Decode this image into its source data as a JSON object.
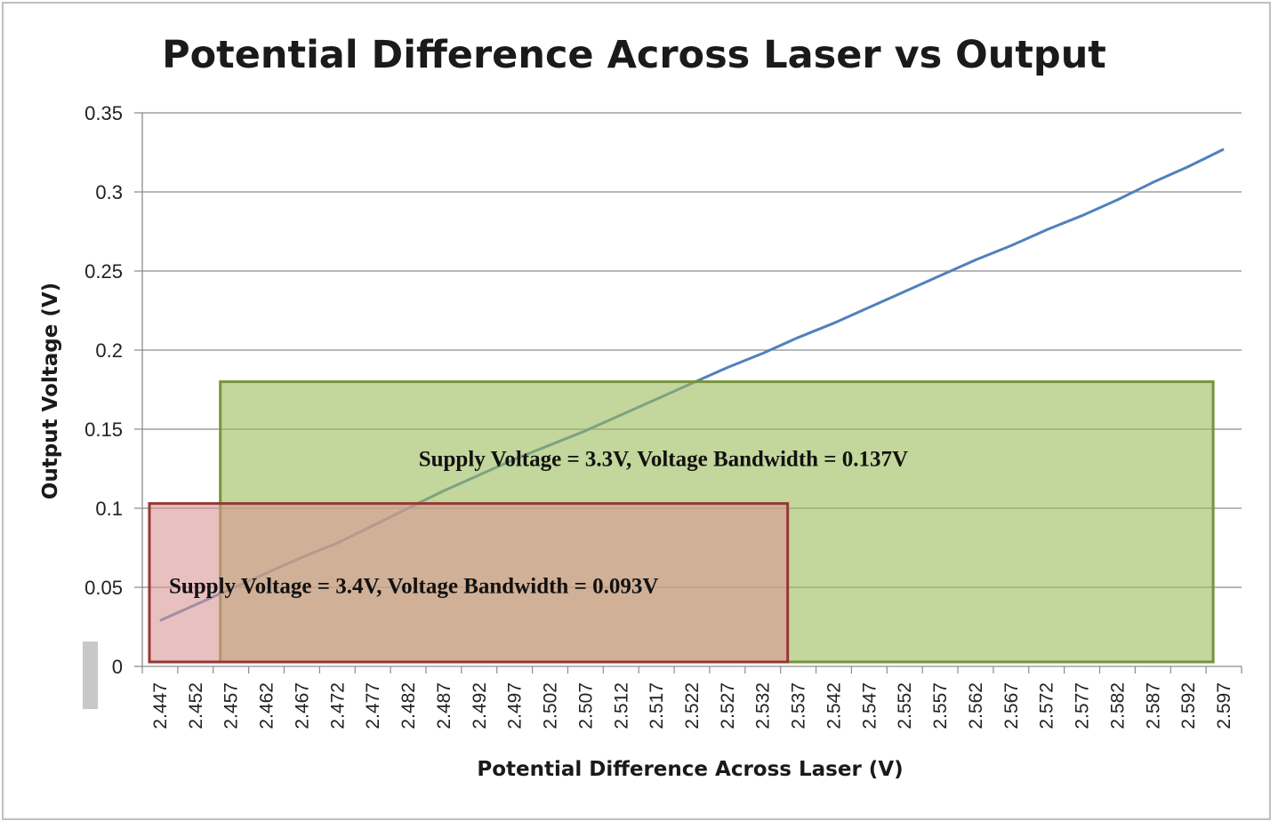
{
  "chart_data": {
    "type": "line",
    "title": "Potential Difference Across Laser vs Output",
    "xlabel": "Potential Difference Across Laser (V)",
    "ylabel": "Output Voltage (V)",
    "ylim": [
      0,
      0.35
    ],
    "yticks": [
      "0",
      "0.05",
      "0.1",
      "0.15",
      "0.2",
      "0.25",
      "0.3",
      "0.35"
    ],
    "categories": [
      "2.447",
      "2.452",
      "2.457",
      "2.462",
      "2.467",
      "2.472",
      "2.477",
      "2.482",
      "2.487",
      "2.492",
      "2.497",
      "2.502",
      "2.507",
      "2.512",
      "2.517",
      "2.522",
      "2.527",
      "2.532",
      "2.537",
      "2.542",
      "2.547",
      "2.552",
      "2.557",
      "2.562",
      "2.567",
      "2.572",
      "2.577",
      "2.582",
      "2.587",
      "2.592",
      "2.597"
    ],
    "series": [
      {
        "values": [
          0.029,
          0.039,
          0.049,
          0.059,
          0.069,
          0.078,
          0.089,
          0.1,
          0.111,
          0.121,
          0.131,
          0.14,
          0.149,
          0.159,
          0.169,
          0.179,
          0.189,
          0.198,
          0.208,
          0.217,
          0.227,
          0.237,
          0.247,
          0.257,
          0.266,
          0.276,
          0.285,
          0.295,
          0.306,
          0.316,
          0.327
        ],
        "color": "#4f81bd"
      }
    ],
    "grid": true,
    "annotations": [
      {
        "text": "Supply Voltage = 3.3V, Voltage Bandwidth = 0.137V",
        "x_range": [
          "2.457",
          "2.597"
        ],
        "y_range": [
          0,
          0.18
        ],
        "fill": "#9bbb59",
        "stroke": "#77933c"
      },
      {
        "text": "Supply Voltage = 3.4V, Voltage Bandwidth = 0.093V",
        "x_range": [
          "2.447",
          "2.537"
        ],
        "y_range": [
          0,
          0.103
        ],
        "fill": "#d99694",
        "stroke": "#953735"
      }
    ]
  }
}
